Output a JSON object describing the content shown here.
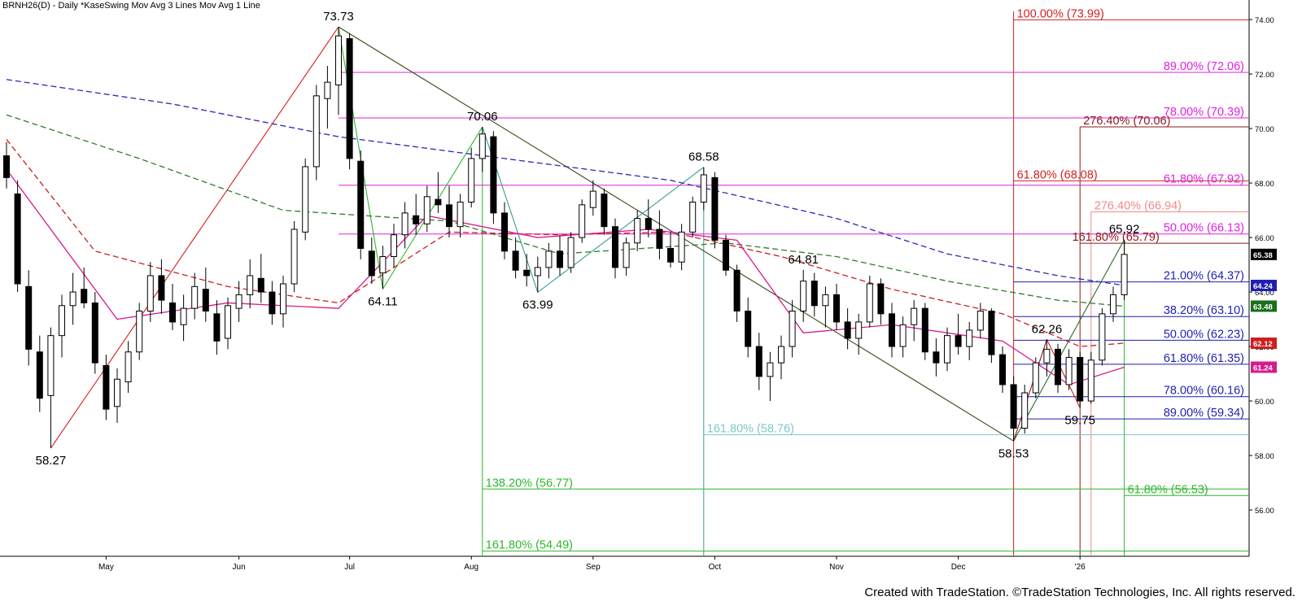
{
  "chart_title": "BRNH26(D) - Daily  *KaseSwing  Mov Avg 3 Lines  Mov Avg 1 Line",
  "footer": "Created with TradeStation. ©TradeStation Technologies, Inc. All rights reserved.",
  "chart_data": {
    "type": "candlestick",
    "symbol": "BRNH26(D)",
    "interval": "Daily",
    "ylim": [
      54.3,
      74.3
    ],
    "y_ticks": [
      "74.00",
      "72.00",
      "70.00",
      "68.00",
      "66.00",
      "64.00",
      "62.00",
      "60.00",
      "58.00",
      "56.00"
    ],
    "x_ticks": [
      "May",
      "Jun",
      "Jul",
      "Aug",
      "Sep",
      "Oct",
      "Nov",
      "Dec",
      "'26"
    ],
    "candles": [
      [
        69.0,
        69.5,
        67.8,
        68.2
      ],
      [
        67.6,
        68.1,
        64.0,
        64.3
      ],
      [
        64.2,
        64.8,
        61.3,
        61.9
      ],
      [
        61.8,
        62.4,
        59.6,
        60.1
      ],
      [
        60.2,
        62.7,
        58.27,
        62.4
      ],
      [
        62.4,
        63.9,
        61.6,
        63.5
      ],
      [
        63.5,
        64.7,
        62.8,
        64.0
      ],
      [
        64.1,
        64.9,
        63.4,
        63.6
      ],
      [
        63.6,
        64.0,
        61.0,
        61.4
      ],
      [
        61.3,
        61.7,
        59.3,
        59.7
      ],
      [
        59.8,
        61.2,
        59.2,
        60.8
      ],
      [
        60.7,
        62.2,
        60.3,
        61.8
      ],
      [
        61.8,
        63.6,
        61.5,
        63.3
      ],
      [
        63.3,
        65.1,
        62.9,
        64.6
      ],
      [
        64.6,
        65.2,
        63.2,
        63.7
      ],
      [
        63.6,
        64.3,
        62.6,
        62.9
      ],
      [
        62.8,
        63.9,
        62.2,
        63.4
      ],
      [
        63.4,
        64.7,
        63.0,
        64.2
      ],
      [
        64.1,
        64.9,
        62.9,
        63.3
      ],
      [
        63.2,
        63.7,
        61.7,
        62.2
      ],
      [
        62.3,
        63.8,
        61.9,
        63.5
      ],
      [
        63.4,
        64.4,
        62.9,
        63.9
      ],
      [
        63.9,
        65.2,
        63.4,
        64.6
      ],
      [
        64.5,
        65.4,
        63.6,
        64.0
      ],
      [
        64.0,
        64.4,
        62.8,
        63.2
      ],
      [
        63.2,
        64.6,
        62.7,
        64.3
      ],
      [
        64.3,
        66.6,
        64.0,
        66.3
      ],
      [
        66.2,
        68.9,
        65.9,
        68.6
      ],
      [
        68.6,
        71.6,
        68.1,
        71.2
      ],
      [
        71.1,
        72.3,
        70.0,
        71.7
      ],
      [
        71.6,
        73.73,
        70.5,
        73.4
      ],
      [
        73.3,
        73.5,
        68.5,
        68.9
      ],
      [
        68.8,
        69.2,
        65.2,
        65.6
      ],
      [
        65.5,
        66.0,
        64.3,
        64.6
      ],
      [
        64.7,
        65.7,
        64.11,
        65.3
      ],
      [
        65.3,
        66.5,
        64.9,
        66.1
      ],
      [
        66.1,
        67.3,
        65.6,
        66.9
      ],
      [
        66.8,
        67.6,
        66.1,
        66.5
      ],
      [
        66.5,
        67.9,
        66.2,
        67.5
      ],
      [
        67.4,
        68.4,
        66.9,
        67.2
      ],
      [
        67.2,
        67.9,
        66.0,
        66.4
      ],
      [
        66.4,
        67.6,
        66.0,
        67.3
      ],
      [
        67.3,
        69.3,
        67.1,
        68.9
      ],
      [
        68.9,
        70.06,
        68.4,
        69.8
      ],
      [
        69.7,
        69.9,
        66.5,
        66.9
      ],
      [
        66.9,
        67.3,
        65.2,
        65.5
      ],
      [
        65.5,
        66.0,
        64.5,
        64.8
      ],
      [
        64.8,
        65.4,
        64.2,
        64.6
      ],
      [
        64.6,
        65.3,
        63.99,
        64.9
      ],
      [
        64.9,
        65.8,
        64.5,
        65.5
      ],
      [
        65.5,
        66.1,
        64.6,
        64.9
      ],
      [
        64.9,
        66.2,
        64.7,
        66.0
      ],
      [
        66.0,
        67.4,
        65.8,
        67.2
      ],
      [
        67.1,
        68.1,
        66.8,
        67.7
      ],
      [
        67.6,
        67.8,
        66.1,
        66.4
      ],
      [
        66.4,
        66.7,
        64.5,
        64.9
      ],
      [
        64.9,
        66.0,
        64.6,
        65.8
      ],
      [
        65.8,
        67.0,
        65.5,
        66.7
      ],
      [
        66.7,
        67.4,
        66.0,
        66.3
      ],
      [
        66.3,
        67.0,
        65.2,
        65.6
      ],
      [
        65.6,
        66.2,
        64.9,
        65.1
      ],
      [
        65.1,
        66.5,
        64.8,
        66.2
      ],
      [
        66.2,
        67.5,
        66.0,
        67.3
      ],
      [
        67.3,
        68.58,
        67.0,
        68.3
      ],
      [
        68.2,
        68.4,
        65.6,
        65.9
      ],
      [
        65.9,
        66.1,
        64.6,
        64.8
      ],
      [
        64.8,
        65.0,
        62.9,
        63.3
      ],
      [
        63.3,
        63.8,
        61.6,
        62.0
      ],
      [
        62.0,
        62.5,
        60.4,
        60.9
      ],
      [
        60.9,
        61.8,
        60.0,
        61.4
      ],
      [
        61.4,
        62.4,
        60.8,
        62.0
      ],
      [
        62.0,
        63.7,
        61.6,
        63.3
      ],
      [
        63.3,
        64.81,
        62.9,
        64.4
      ],
      [
        64.4,
        64.7,
        63.1,
        63.5
      ],
      [
        63.5,
        64.2,
        62.7,
        63.9
      ],
      [
        63.9,
        64.3,
        62.6,
        62.9
      ],
      [
        62.9,
        63.4,
        61.9,
        62.3
      ],
      [
        62.3,
        63.2,
        61.7,
        62.9
      ],
      [
        62.9,
        64.6,
        62.7,
        64.3
      ],
      [
        64.3,
        64.5,
        62.8,
        63.2
      ],
      [
        63.2,
        63.6,
        61.6,
        62.0
      ],
      [
        62.0,
        63.1,
        61.6,
        62.8
      ],
      [
        62.8,
        63.7,
        62.2,
        63.4
      ],
      [
        63.4,
        63.6,
        61.5,
        61.8
      ],
      [
        61.8,
        62.3,
        60.9,
        61.4
      ],
      [
        61.4,
        62.7,
        61.1,
        62.4
      ],
      [
        62.4,
        63.2,
        61.7,
        62.0
      ],
      [
        62.0,
        62.9,
        61.5,
        62.6
      ],
      [
        62.6,
        63.6,
        62.3,
        63.3
      ],
      [
        63.3,
        63.4,
        61.4,
        61.7
      ],
      [
        61.7,
        62.0,
        60.3,
        60.6
      ],
      [
        60.6,
        60.9,
        58.53,
        59.0
      ],
      [
        59.0,
        60.6,
        58.8,
        60.3
      ],
      [
        60.3,
        61.6,
        60.1,
        61.4
      ],
      [
        61.4,
        62.26,
        60.9,
        61.9
      ],
      [
        61.9,
        62.1,
        60.3,
        60.6
      ],
      [
        60.6,
        61.9,
        60.4,
        61.6
      ],
      [
        61.6,
        61.8,
        59.75,
        60.0
      ],
      [
        60.0,
        61.8,
        59.9,
        61.5
      ],
      [
        61.5,
        63.4,
        61.3,
        63.2
      ],
      [
        63.2,
        64.2,
        62.9,
        63.9
      ],
      [
        63.9,
        65.92,
        63.7,
        65.38
      ]
    ],
    "moving_averages": [
      {
        "color": "#2a2ab8",
        "dash": true,
        "values": [
          [
            0,
            71.8
          ],
          [
            15,
            70.9
          ],
          [
            30,
            69.7
          ],
          [
            45,
            68.9
          ],
          [
            60,
            68.1
          ],
          [
            75,
            66.7
          ],
          [
            85,
            65.4
          ],
          [
            95,
            64.6
          ],
          [
            101,
            64.24
          ]
        ]
      },
      {
        "color": "#2e7d2e",
        "dash": true,
        "values": [
          [
            0,
            70.5
          ],
          [
            12,
            68.9
          ],
          [
            25,
            67.0
          ],
          [
            40,
            66.6
          ],
          [
            50,
            65.4
          ],
          [
            65,
            65.8
          ],
          [
            75,
            65.3
          ],
          [
            85,
            64.4
          ],
          [
            95,
            63.7
          ],
          [
            101,
            63.48
          ]
        ]
      },
      {
        "color": "#cc2020",
        "dash": true,
        "values": [
          [
            0,
            69.6
          ],
          [
            8,
            65.5
          ],
          [
            20,
            64.2
          ],
          [
            30,
            63.6
          ],
          [
            40,
            66.2
          ],
          [
            50,
            66.1
          ],
          [
            60,
            66.2
          ],
          [
            70,
            65.3
          ],
          [
            80,
            64.1
          ],
          [
            90,
            63.2
          ],
          [
            97,
            62.0
          ],
          [
            101,
            62.12
          ]
        ]
      },
      {
        "color": "#d81b8c",
        "dash": false,
        "values": [
          [
            0,
            68.5
          ],
          [
            10,
            63.0
          ],
          [
            20,
            63.6
          ],
          [
            30,
            63.4
          ],
          [
            38,
            66.8
          ],
          [
            48,
            66.0
          ],
          [
            58,
            66.3
          ],
          [
            66,
            65.9
          ],
          [
            72,
            62.5
          ],
          [
            80,
            62.8
          ],
          [
            90,
            62.2
          ],
          [
            96,
            60.6
          ],
          [
            101,
            61.24
          ]
        ]
      }
    ],
    "price_labels": [
      {
        "value": 65.38,
        "text": "65.38",
        "bg": "#000000"
      },
      {
        "value": 64.24,
        "text": "64.24",
        "bg": "#1f1fb0"
      },
      {
        "value": 63.48,
        "text": "63.48",
        "bg": "#1c6e1c"
      },
      {
        "value": 62.12,
        "text": "62.12",
        "bg": "#cc1f1f"
      },
      {
        "value": 61.24,
        "text": "61.24",
        "bg": "#d81b8c"
      }
    ],
    "swing_labels": [
      {
        "i": 4,
        "price": 58.27,
        "text": "58.27",
        "pos": "below"
      },
      {
        "i": 30,
        "price": 73.73,
        "text": "73.73",
        "pos": "above"
      },
      {
        "i": 34,
        "price": 64.11,
        "text": "64.11",
        "pos": "below"
      },
      {
        "i": 43,
        "price": 70.06,
        "text": "70.06",
        "pos": "above"
      },
      {
        "i": 48,
        "price": 63.99,
        "text": "63.99",
        "pos": "below"
      },
      {
        "i": 63,
        "price": 68.58,
        "text": "68.58",
        "pos": "above"
      },
      {
        "i": 72,
        "price": 64.81,
        "text": "64.81",
        "pos": "above"
      },
      {
        "i": 91,
        "price": 58.53,
        "text": "58.53",
        "pos": "below"
      },
      {
        "i": 94,
        "price": 62.26,
        "text": "62.26",
        "pos": "above"
      },
      {
        "i": 97,
        "price": 59.75,
        "text": "59.75",
        "pos": "below"
      },
      {
        "i": 101,
        "price": 65.92,
        "text": "65.92",
        "pos": "above"
      }
    ],
    "fib_levels": [
      {
        "price": 73.99,
        "text": "100.00% (73.99)",
        "color": "#d42020",
        "from": 91,
        "label_at": 91
      },
      {
        "price": 72.06,
        "text": "89.00% (72.06)",
        "color": "#e020e0",
        "from": 30
      },
      {
        "price": 70.39,
        "text": "78.00% (70.39)",
        "color": "#e020e0",
        "from": 30
      },
      {
        "price": 70.06,
        "text": "276.40% (70.06)",
        "color": "#8b1a1a",
        "from": 97,
        "label_at": 97
      },
      {
        "price": 68.08,
        "text": "61.80% (68.08)",
        "color": "#d42020",
        "from": 91,
        "label_at": 91
      },
      {
        "price": 67.92,
        "text": "61.80% (67.92)",
        "color": "#e020e0",
        "from": 30
      },
      {
        "price": 66.94,
        "text": "276.40% (66.94)",
        "color": "#f08a8a",
        "from": 98,
        "label_at": 98
      },
      {
        "price": 66.13,
        "text": "50.00% (66.13)",
        "color": "#e020e0",
        "from": 30
      },
      {
        "price": 65.79,
        "text": "161.80% (65.79)",
        "color": "#8b1a1a",
        "from": 97,
        "label_at": 96
      },
      {
        "price": 64.37,
        "text": "21.00% (64.37)",
        "color": "#1f1fb0",
        "from": 91
      },
      {
        "price": 63.1,
        "text": "38.20% (63.10)",
        "color": "#1f1fb0",
        "from": 91
      },
      {
        "price": 62.23,
        "text": "50.00% (62.23)",
        "color": "#1f1fb0",
        "from": 91
      },
      {
        "price": 61.35,
        "text": "61.80% (61.35)",
        "color": "#1f1fb0",
        "from": 91
      },
      {
        "price": 60.16,
        "text": "78.00% (60.16)",
        "color": "#1f1fb0",
        "from": 91
      },
      {
        "price": 59.34,
        "text": "89.00% (59.34)",
        "color": "#1f1fb0",
        "from": 91
      },
      {
        "price": 58.76,
        "text": "161.80% (58.76)",
        "color": "#7fc6c6",
        "from": 63,
        "label_at": 63
      },
      {
        "price": 56.77,
        "text": "138.20% (56.77)",
        "color": "#2db82d",
        "from": 43,
        "label_at": 43
      },
      {
        "price": 56.53,
        "text": "61.80% (56.53)",
        "color": "#2db82d",
        "from": 101,
        "label_at": 101
      },
      {
        "price": 54.49,
        "text": "161.80% (54.49)",
        "color": "#2db82d",
        "from": 43,
        "label_at": 43
      }
    ]
  }
}
